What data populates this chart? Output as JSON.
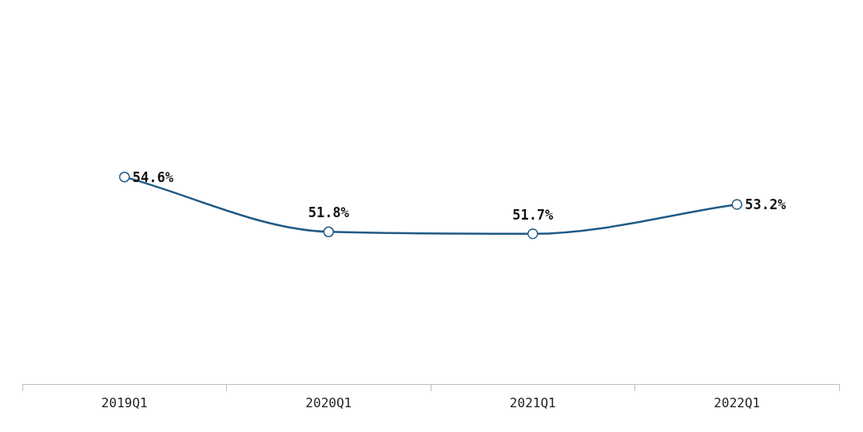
{
  "chart_data": {
    "type": "line",
    "categories": [
      "2019Q1",
      "2020Q1",
      "2021Q1",
      "2022Q1"
    ],
    "series": [
      {
        "color": "#1f5a85",
        "values": [
          54.6,
          51.8,
          51.7,
          53.2
        ],
        "value_labels": [
          "54.6%",
          "51.8%",
          "51.7%",
          "53.2%"
        ]
      }
    ],
    "grid": false,
    "legend": false,
    "marker": "circle",
    "line_style": "solid"
  }
}
